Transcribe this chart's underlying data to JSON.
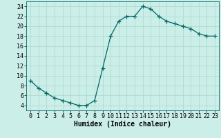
{
  "x": [
    0,
    1,
    2,
    3,
    4,
    5,
    6,
    7,
    8,
    9,
    10,
    11,
    12,
    13,
    14,
    15,
    16,
    17,
    18,
    19,
    20,
    21,
    22,
    23
  ],
  "y": [
    9,
    7.5,
    6.5,
    5.5,
    5,
    4.5,
    4,
    4,
    5,
    11.5,
    18,
    21,
    22,
    22,
    24,
    23.5,
    22,
    21,
    20.5,
    20,
    19.5,
    18.5,
    18,
    18
  ],
  "line_color": "#006666",
  "marker": "+",
  "marker_size": 4,
  "background_color": "#cceee8",
  "grid_color": "#aaddcc",
  "xlabel": "Humidex (Indice chaleur)",
  "xlabel_fontsize": 7,
  "tick_fontsize": 6,
  "xlim": [
    -0.5,
    23.5
  ],
  "ylim": [
    3,
    25
  ],
  "yticks": [
    4,
    6,
    8,
    10,
    12,
    14,
    16,
    18,
    20,
    22,
    24
  ],
  "xticks": [
    0,
    1,
    2,
    3,
    4,
    5,
    6,
    7,
    8,
    9,
    10,
    11,
    12,
    13,
    14,
    15,
    16,
    17,
    18,
    19,
    20,
    21,
    22,
    23
  ]
}
